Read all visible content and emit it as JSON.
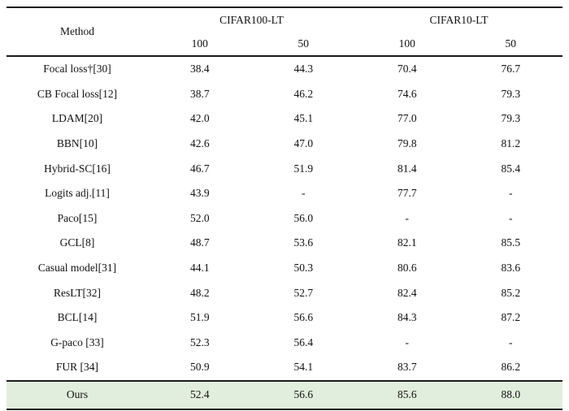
{
  "table": {
    "header": {
      "method_label": "Method",
      "groups": [
        {
          "label": "CIFAR100-LT",
          "sub": [
            "100",
            "50"
          ]
        },
        {
          "label": "CIFAR10-LT",
          "sub": [
            "100",
            "50"
          ]
        }
      ]
    },
    "rows": [
      {
        "method": "Focal loss†[30]",
        "values": [
          "38.4",
          "44.3",
          "70.4",
          "76.7"
        ]
      },
      {
        "method": "CB Focal loss[12]",
        "values": [
          "38.7",
          "46.2",
          "74.6",
          "79.3"
        ]
      },
      {
        "method": "LDAM[20]",
        "values": [
          "42.0",
          "45.1",
          "77.0",
          "79.3"
        ]
      },
      {
        "method": "BBN[10]",
        "values": [
          "42.6",
          "47.0",
          "79.8",
          "81.2"
        ]
      },
      {
        "method": "Hybrid-SC[16]",
        "values": [
          "46.7",
          "51.9",
          "81.4",
          "85.4"
        ]
      },
      {
        "method": "Logits adj.[11]",
        "values": [
          "43.9",
          "-",
          "77.7",
          "-"
        ]
      },
      {
        "method": "Paco[15]",
        "values": [
          "52.0",
          "56.0",
          "-",
          "-"
        ]
      },
      {
        "method": "GCL[8]",
        "values": [
          "48.7",
          "53.6",
          "82.1",
          "85.5"
        ]
      },
      {
        "method": "Casual model[31]",
        "values": [
          "44.1",
          "50.3",
          "80.6",
          "83.6"
        ]
      },
      {
        "method": "ResLT[32]",
        "values": [
          "48.2",
          "52.7",
          "82.4",
          "85.2"
        ]
      },
      {
        "method": "BCL[14]",
        "values": [
          "51.9",
          "56.6",
          "84.3",
          "87.2"
        ]
      },
      {
        "method": "G-paco [33]",
        "values": [
          "52.3",
          "56.4",
          "-",
          "-"
        ]
      },
      {
        "method": "FUR [34]",
        "values": [
          "50.9",
          "54.1",
          "83.7",
          "86.2"
        ]
      }
    ],
    "highlight_row": {
      "method": "Ours",
      "values": [
        "52.4",
        "56.6",
        "85.6",
        "88.0"
      ]
    },
    "colors": {
      "highlight_bg": "#e2eedd",
      "rule": "#1a1a1a",
      "text": "#111111"
    }
  }
}
